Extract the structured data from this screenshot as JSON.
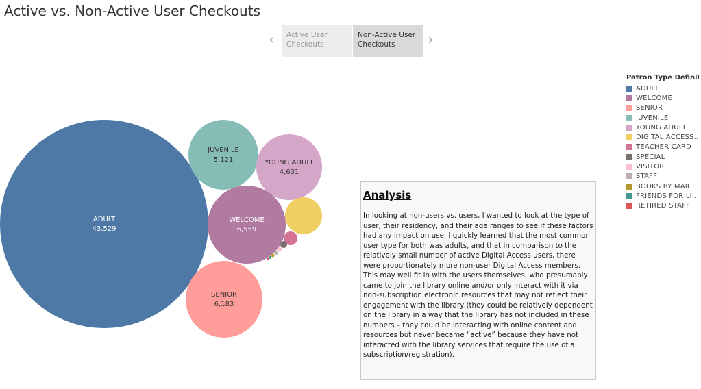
{
  "header": {
    "title": "Active vs. Non-Active User Checkouts"
  },
  "story": {
    "prev_icon": "chevron-left-icon",
    "next_icon": "chevron-right-icon",
    "tabs": [
      {
        "label": "Active User\nCheckouts",
        "selected": false
      },
      {
        "label": "Non-Active User\nCheckouts",
        "selected": true
      }
    ]
  },
  "chart_data": {
    "type": "bubble",
    "title": "",
    "bubbles": [
      {
        "category": "ADULT",
        "value": 43529,
        "label": "43,529",
        "color": "#4e79a7"
      },
      {
        "category": "JUVENILE",
        "value": 5121,
        "label": "5,121",
        "color": "#86bcb6"
      },
      {
        "category": "YOUNG ADULT",
        "value": 4631,
        "label": "4,631",
        "color": "#d4a6c8"
      },
      {
        "category": "WELCOME",
        "value": 6559,
        "label": "6,559",
        "color": "#b07aa1"
      },
      {
        "category": "SENIOR",
        "value": 6183,
        "label": "6,183",
        "color": "#ff9d9a"
      },
      {
        "category": "DIGITAL ACCESS..",
        "color": "#f1ce63"
      },
      {
        "category": "TEACHER CARD",
        "color": "#d37295"
      },
      {
        "category": "SPECIAL",
        "color": "#79706e"
      },
      {
        "category": "VISITOR",
        "color": "#fabfd2"
      },
      {
        "category": "STAFF",
        "color": "#bab0ac"
      },
      {
        "category": "BOOKS BY MAIL",
        "color": "#b6992d"
      },
      {
        "category": "FRIENDS FOR LI..",
        "color": "#499894"
      },
      {
        "category": "RETIRED STAFF",
        "color": "#e15759"
      }
    ]
  },
  "legend": {
    "title": "Patron Type Definiti..",
    "items": [
      {
        "label": "ADULT",
        "color": "#4e79a7"
      },
      {
        "label": "WELCOME",
        "color": "#b07aa1"
      },
      {
        "label": "SENIOR",
        "color": "#ff9d9a"
      },
      {
        "label": "JUVENILE",
        "color": "#86bcb6"
      },
      {
        "label": "YOUNG ADULT",
        "color": "#d4a6c8"
      },
      {
        "label": "DIGITAL ACCESS..",
        "color": "#f1ce63"
      },
      {
        "label": "TEACHER CARD",
        "color": "#d37295"
      },
      {
        "label": "SPECIAL",
        "color": "#79706e"
      },
      {
        "label": "VISITOR",
        "color": "#fabfd2"
      },
      {
        "label": "STAFF",
        "color": "#bab0ac"
      },
      {
        "label": "BOOKS BY MAIL",
        "color": "#b6992d"
      },
      {
        "label": "FRIENDS FOR LI..",
        "color": "#499894"
      },
      {
        "label": "RETIRED STAFF",
        "color": "#e15759"
      }
    ]
  },
  "analysis": {
    "title": "Analysis",
    "body": "In looking at non-users vs. users, I wanted to look at the type of user, their residency, and their age ranges to see if these factors had any impact on use. I quickly learned that the most common user type for both was adults, and that in comparison to the relatively small number of active Digital Access users, there were proportionately more non-user Digital Access members. This may well fit in with the users themselves, who presumably came to join the library online and/or only interact with it via non-subscription electronic resources that may not reflect their engagement with the library (they could be relatively dependent on the library in a way that the library has not included in these numbers – they could be interacting with online content and resources but never became “active” because they have not interacted with the library services that require the use of a subscription/registration)."
  }
}
